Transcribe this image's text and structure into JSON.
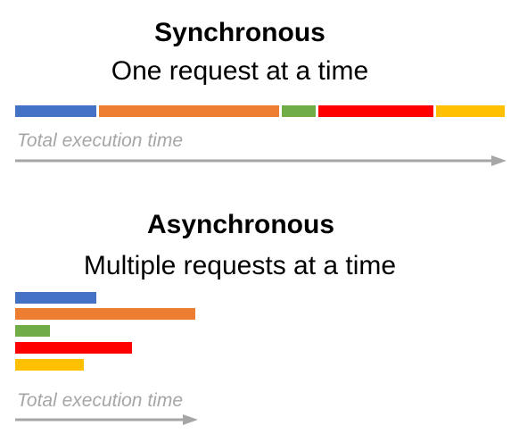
{
  "sync": {
    "title": "Synchronous",
    "subtitle": "One request at a time",
    "caption": "Total execution time",
    "bars": [
      {
        "color": "#4472c4"
      },
      {
        "color": "#ed7d31"
      },
      {
        "color": "#70ad47"
      },
      {
        "color": "#ff0000"
      },
      {
        "color": "#ffc000"
      }
    ]
  },
  "async": {
    "title": "Asynchronous",
    "subtitle": "Multiple requests at a time",
    "caption": "Total execution time",
    "bars": [
      {
        "color": "#4472c4"
      },
      {
        "color": "#ed7d31"
      },
      {
        "color": "#70ad47"
      },
      {
        "color": "#ff0000"
      },
      {
        "color": "#ffc000"
      }
    ]
  },
  "colors": {
    "arrow": "#a6a6a6",
    "caption": "#a6a6a6"
  }
}
